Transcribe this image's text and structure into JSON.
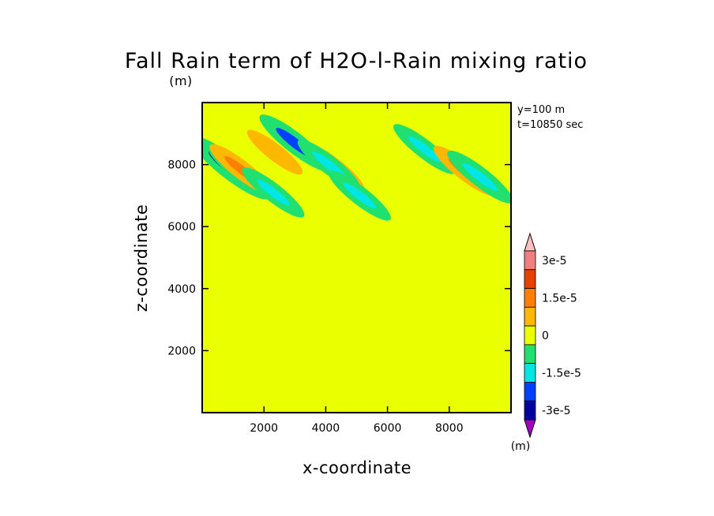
{
  "chart_data": {
    "type": "heatmap",
    "title": "Fall Rain term of H2O-l-Rain mixing ratio",
    "title_units": "(m)",
    "xlabel": "x-coordinate",
    "ylabel": "z-coordinate",
    "xlim": [
      0,
      10000
    ],
    "ylim": [
      0,
      10000
    ],
    "x_ticks": [
      "2000",
      "4000",
      "6000",
      "8000"
    ],
    "y_ticks": [
      "2000",
      "4000",
      "6000",
      "8000"
    ],
    "annotations": [
      "y=100 m",
      "t=10850 sec"
    ],
    "colorbar": {
      "labels": [
        "3e-5",
        "1.5e-5",
        "0",
        "-1.5e-5",
        "-3e-5"
      ],
      "units": "(m)",
      "range": [
        -3e-05,
        3e-05
      ],
      "levels": 11,
      "colors": [
        "#a000c0",
        "#0000a0",
        "#0040ff",
        "#00e6e6",
        "#20e070",
        "#eaff00",
        "#ffb800",
        "#ff8000",
        "#e84000",
        "#f08080",
        "#ffc0c0"
      ]
    },
    "features": [
      {
        "x": 900,
        "z": 7900,
        "value": -2e-05
      },
      {
        "x": 1200,
        "z": 7800,
        "value": -1e-05
      },
      {
        "x": 1250,
        "z": 7850,
        "value": 1e-05
      },
      {
        "x": 3000,
        "z": 8700,
        "value": -1.5e-05
      },
      {
        "x": 2300,
        "z": 7100,
        "value": -1e-05
      },
      {
        "x": 2350,
        "z": 8400,
        "value": 6e-06
      },
      {
        "x": 4300,
        "z": 7900,
        "value": 8e-06
      },
      {
        "x": 4100,
        "z": 8000,
        "value": -1e-05
      },
      {
        "x": 5100,
        "z": 7000,
        "value": -1e-05
      },
      {
        "x": 7200,
        "z": 8500,
        "value": -1e-05
      },
      {
        "x": 8500,
        "z": 7800,
        "value": 1e-05
      },
      {
        "x": 9000,
        "z": 7600,
        "value": -1.2e-05
      }
    ]
  }
}
